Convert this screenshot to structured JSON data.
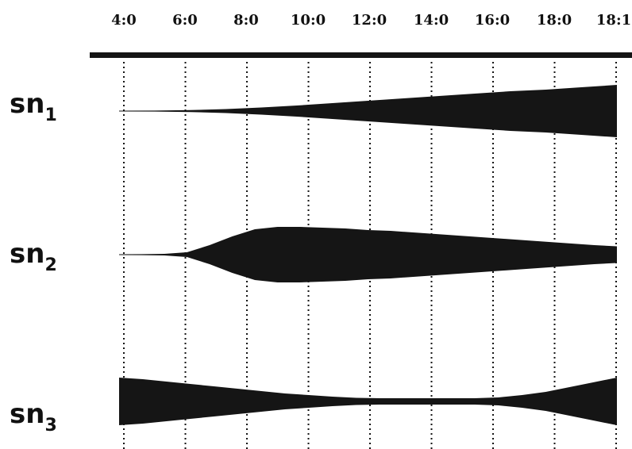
{
  "timeline": {
    "ticks": [
      "4:0",
      "6:0",
      "8:0",
      "10:0",
      "12:0",
      "14:0",
      "16:0",
      "18:0",
      "18:1"
    ],
    "rows": [
      {
        "name": "sn",
        "subscript": "1",
        "envelope": [
          0.5,
          0.6,
          1.2,
          2.5,
          4.5,
          7,
          10,
          13,
          16,
          19,
          22,
          25,
          27,
          30,
          33
        ]
      },
      {
        "name": "sn",
        "subscript": "2",
        "envelope": [
          0.5,
          0.6,
          1.0,
          3,
          12,
          23,
          32,
          35,
          35,
          34,
          33,
          31,
          30,
          28,
          26,
          24,
          22,
          20,
          18,
          16,
          14,
          12,
          10.5
        ]
      },
      {
        "name": "sn",
        "subscript": "3",
        "envelope": [
          30,
          28,
          25,
          22,
          19,
          16,
          13,
          10,
          8,
          6,
          4.5,
          4,
          4,
          4,
          4,
          4,
          5,
          8,
          12,
          18,
          24,
          30
        ]
      }
    ]
  },
  "colors": {
    "ink": "#151515",
    "background": "#ffffff"
  }
}
